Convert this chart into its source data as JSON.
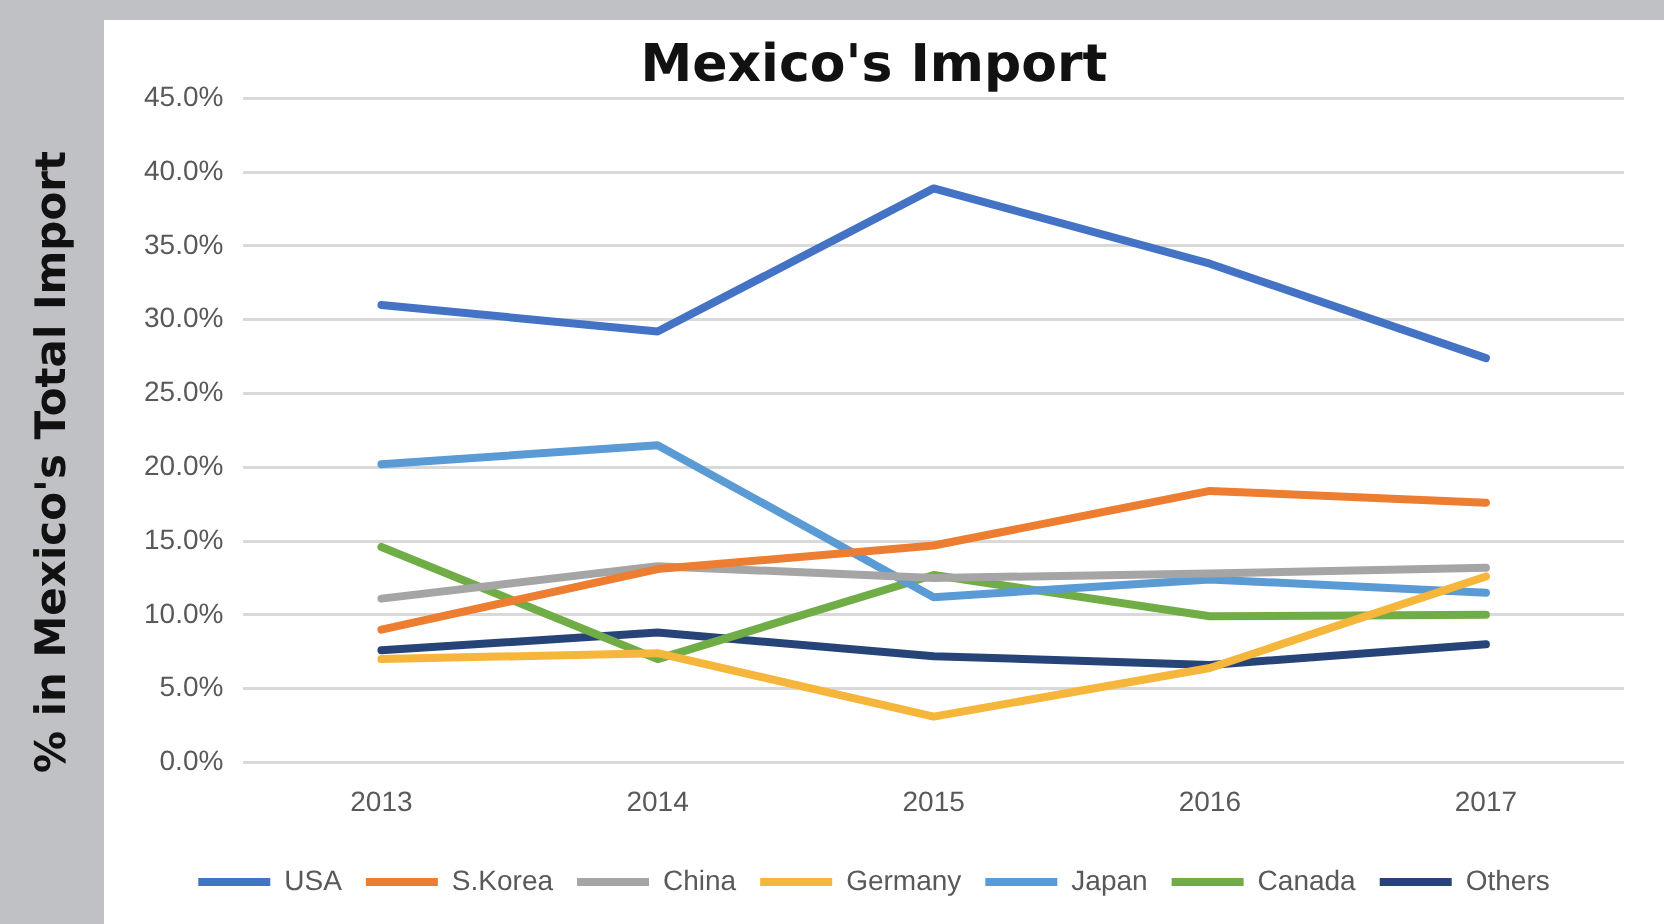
{
  "chart_data": {
    "type": "line",
    "title": "Mexico's Import",
    "ylabel": "% in Mexico's Total Import",
    "categories": [
      "2013",
      "2014",
      "2015",
      "2016",
      "2017"
    ],
    "series": [
      {
        "name": "USA",
        "color": "#4472c4",
        "values": [
          31.0,
          29.2,
          38.9,
          33.8,
          27.4
        ]
      },
      {
        "name": "S.Korea",
        "color": "#ed7d31",
        "values": [
          9.0,
          13.1,
          14.7,
          18.4,
          17.6
        ]
      },
      {
        "name": "China",
        "color": "#a5a5a5",
        "values": [
          11.1,
          13.3,
          12.5,
          12.8,
          13.2
        ]
      },
      {
        "name": "Germany",
        "color": "#f6b53b",
        "values": [
          7.0,
          7.4,
          3.1,
          6.4,
          12.6
        ]
      },
      {
        "name": "Japan",
        "color": "#5b9bd5",
        "values": [
          20.2,
          21.5,
          11.2,
          12.4,
          11.5
        ]
      },
      {
        "name": "Canada",
        "color": "#70ad47",
        "values": [
          14.6,
          7.0,
          12.7,
          9.9,
          10.0
        ]
      },
      {
        "name": "Others",
        "color": "#264478",
        "values": [
          7.6,
          8.8,
          7.2,
          6.6,
          8.0
        ]
      }
    ],
    "ylim": [
      0,
      45
    ],
    "yticks": [
      {
        "value": 0,
        "label": "0.0%"
      },
      {
        "value": 5,
        "label": "5.0%"
      },
      {
        "value": 10,
        "label": "10.0%"
      },
      {
        "value": 15,
        "label": "15.0%"
      },
      {
        "value": 20,
        "label": "20.0%"
      },
      {
        "value": 25,
        "label": "25.0%"
      },
      {
        "value": 30,
        "label": "30.0%"
      },
      {
        "value": 35,
        "label": "35.0%"
      },
      {
        "value": 40,
        "label": "40.0%"
      },
      {
        "value": 45,
        "label": "45.0%"
      }
    ],
    "grid": "y",
    "legend": "bottom",
    "marker": "none",
    "line_style": "solid"
  }
}
